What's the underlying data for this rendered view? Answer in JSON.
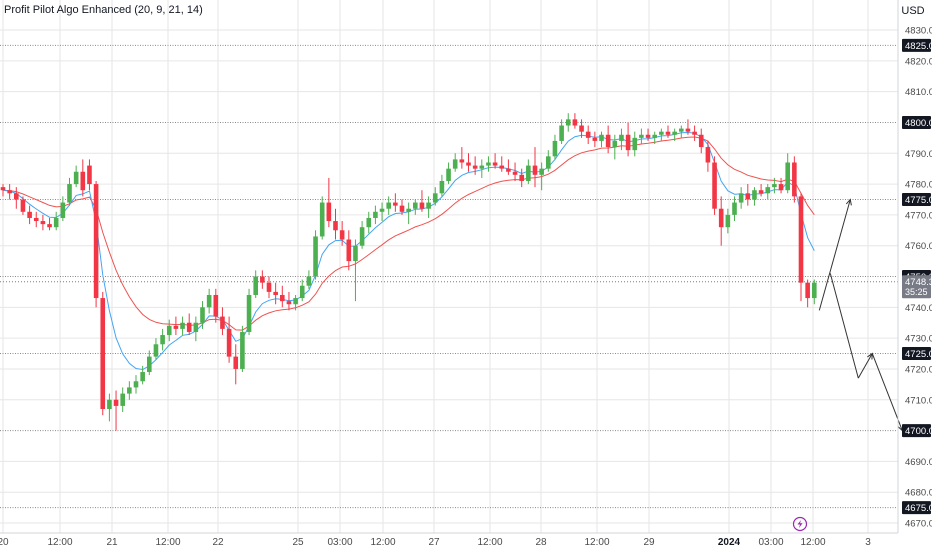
{
  "indicator": {
    "name": "Profit Pilot Algo Enhanced",
    "params": "(20, 9, 21, 14)"
  },
  "currency": "USD",
  "colors": {
    "up": "#4caf50",
    "down": "#f23645",
    "ma_fast": "#42a5f5",
    "ma_slow": "#ef5350",
    "grid": "#e6e6e6",
    "level_line": "#8a8a8a",
    "axis_text": "#4a4a4a",
    "level_box": "#131722",
    "price_box": "#787b86",
    "projection": "#333333"
  },
  "price_axis": {
    "ticks": [
      "4830.0",
      "4820.0",
      "4810.0",
      "4790.0",
      "4780.0",
      "4770.0",
      "4760.0",
      "4740.0",
      "4730.0",
      "4720.0",
      "4710.0",
      "4690.0",
      "4680.0",
      "4670.0"
    ],
    "levels": [
      "4825.0",
      "4800.0",
      "4775.0",
      "4750.0",
      "4725.0",
      "4700.0",
      "4675.0"
    ],
    "current_price": "4748.3",
    "countdown": "35:25"
  },
  "time_axis": [
    "20",
    "12:00",
    "21",
    "12:00",
    "22",
    "25",
    "03:00",
    "12:00",
    "27",
    "12:00",
    "28",
    "12:00",
    "29",
    "2024",
    "03:00",
    "12:00",
    "3"
  ],
  "chart_data": {
    "type": "candlestick",
    "ylim": [
      4667,
      4833
    ],
    "horizontal_levels": [
      4825,
      4800,
      4775,
      4750,
      4725,
      4700,
      4675
    ],
    "current_price": 4748.3,
    "series": [
      {
        "name": "",
        "type": "ma_fast",
        "values": []
      },
      {
        "name": "",
        "type": "ma_slow",
        "values": []
      }
    ],
    "candles": [
      [
        4779,
        4780,
        4776,
        4778
      ],
      [
        4778,
        4780,
        4775,
        4777
      ],
      [
        4777,
        4779,
        4772,
        4775
      ],
      [
        4775,
        4776,
        4770,
        4771
      ],
      [
        4771,
        4773,
        4767,
        4769
      ],
      [
        4769,
        4771,
        4766,
        4768
      ],
      [
        4768,
        4770,
        4765,
        4767
      ],
      [
        4767,
        4769,
        4765,
        4766
      ],
      [
        4766,
        4771,
        4765,
        4769
      ],
      [
        4769,
        4776,
        4768,
        4774
      ],
      [
        4774,
        4782,
        4773,
        4780
      ],
      [
        4780,
        4786,
        4779,
        4784
      ],
      [
        4784,
        4788,
        4776,
        4778
      ],
      [
        4786,
        4788,
        4778,
        4780
      ],
      [
        4780,
        4781,
        4740,
        4743
      ],
      [
        4743,
        4745,
        4705,
        4707
      ],
      [
        4707,
        4712,
        4703,
        4710
      ],
      [
        4710,
        4713,
        4700,
        4708
      ],
      [
        4708,
        4714,
        4706,
        4712
      ],
      [
        4712,
        4716,
        4710,
        4714
      ],
      [
        4714,
        4718,
        4712,
        4716
      ],
      [
        4716,
        4721,
        4715,
        4719
      ],
      [
        4719,
        4726,
        4718,
        4724
      ],
      [
        4724,
        4730,
        4723,
        4728
      ],
      [
        4728,
        4733,
        4726,
        4731
      ],
      [
        4731,
        4736,
        4729,
        4734
      ],
      [
        4734,
        4737,
        4731,
        4733
      ],
      [
        4733,
        4737,
        4731,
        4735
      ],
      [
        4735,
        4738,
        4731,
        4732
      ],
      [
        4732,
        4737,
        4729,
        4735
      ],
      [
        4735,
        4742,
        4733,
        4740
      ],
      [
        4740,
        4746,
        4738,
        4744
      ],
      [
        4744,
        4746,
        4735,
        4737
      ],
      [
        4737,
        4740,
        4731,
        4733
      ],
      [
        4733,
        4737,
        4722,
        4724
      ],
      [
        4724,
        4728,
        4715,
        4720
      ],
      [
        4720,
        4734,
        4719,
        4732
      ],
      [
        4732,
        4746,
        4731,
        4744
      ],
      [
        4744,
        4752,
        4743,
        4750
      ],
      [
        4750,
        4752,
        4746,
        4748
      ],
      [
        4748,
        4750,
        4743,
        4745
      ],
      [
        4745,
        4748,
        4741,
        4744
      ],
      [
        4744,
        4747,
        4740,
        4742
      ],
      [
        4742,
        4745,
        4739,
        4741
      ],
      [
        4741,
        4744,
        4739,
        4743
      ],
      [
        4743,
        4749,
        4742,
        4747
      ],
      [
        4747,
        4752,
        4746,
        4750
      ],
      [
        4750,
        4765,
        4749,
        4763
      ],
      [
        4763,
        4776,
        4762,
        4774
      ],
      [
        4774,
        4782,
        4766,
        4768
      ],
      [
        4768,
        4772,
        4762,
        4765
      ],
      [
        4765,
        4768,
        4760,
        4762
      ],
      [
        4762,
        4765,
        4752,
        4755
      ],
      [
        4755,
        4762,
        4742,
        4760
      ],
      [
        4760,
        4768,
        4759,
        4766
      ],
      [
        4766,
        4771,
        4764,
        4769
      ],
      [
        4769,
        4773,
        4767,
        4771
      ],
      [
        4771,
        4774,
        4768,
        4772
      ],
      [
        4772,
        4776,
        4770,
        4774
      ],
      [
        4774,
        4777,
        4771,
        4773
      ],
      [
        4773,
        4775,
        4770,
        4771
      ],
      [
        4771,
        4774,
        4767,
        4772
      ],
      [
        4772,
        4775,
        4770,
        4774
      ],
      [
        4774,
        4778,
        4771,
        4772
      ],
      [
        4772,
        4776,
        4769,
        4774
      ],
      [
        4774,
        4779,
        4773,
        4777
      ],
      [
        4777,
        4783,
        4776,
        4781
      ],
      [
        4781,
        4787,
        4780,
        4785
      ],
      [
        4785,
        4790,
        4784,
        4788
      ],
      [
        4788,
        4792,
        4785,
        4787
      ],
      [
        4787,
        4790,
        4784,
        4786
      ],
      [
        4786,
        4789,
        4783,
        4785
      ],
      [
        4785,
        4788,
        4782,
        4786
      ],
      [
        4786,
        4789,
        4784,
        4787
      ],
      [
        4787,
        4790,
        4785,
        4786
      ],
      [
        4786,
        4789,
        4784,
        4785
      ],
      [
        4785,
        4788,
        4783,
        4784
      ],
      [
        4784,
        4787,
        4781,
        4783
      ],
      [
        4783,
        4785,
        4779,
        4781
      ],
      [
        4781,
        4788,
        4780,
        4786
      ],
      [
        4786,
        4792,
        4779,
        4783
      ],
      [
        4783,
        4787,
        4778,
        4785
      ],
      [
        4785,
        4791,
        4784,
        4789
      ],
      [
        4789,
        4796,
        4788,
        4794
      ],
      [
        4794,
        4801,
        4793,
        4799
      ],
      [
        4799,
        4803,
        4797,
        4801
      ],
      [
        4801,
        4803,
        4798,
        4799
      ],
      [
        4799,
        4801,
        4795,
        4797
      ],
      [
        4797,
        4799,
        4793,
        4795
      ],
      [
        4795,
        4797,
        4792,
        4794
      ],
      [
        4794,
        4797,
        4792,
        4796
      ],
      [
        4796,
        4799,
        4790,
        4792
      ],
      [
        4792,
        4796,
        4788,
        4794
      ],
      [
        4794,
        4798,
        4791,
        4796
      ],
      [
        4796,
        4800,
        4789,
        4791
      ],
      [
        4791,
        4797,
        4789,
        4795
      ],
      [
        4795,
        4798,
        4793,
        4796
      ],
      [
        4796,
        4798,
        4794,
        4795
      ],
      [
        4795,
        4797,
        4793,
        4796
      ],
      [
        4796,
        4798,
        4794,
        4797
      ],
      [
        4797,
        4799,
        4795,
        4796
      ],
      [
        4796,
        4798,
        4794,
        4797
      ],
      [
        4797,
        4799,
        4795,
        4798
      ],
      [
        4798,
        4801,
        4796,
        4797
      ],
      [
        4797,
        4799,
        4794,
        4796
      ],
      [
        4796,
        4798,
        4790,
        4792
      ],
      [
        4792,
        4794,
        4784,
        4787
      ],
      [
        4787,
        4789,
        4770,
        4772
      ],
      [
        4772,
        4776,
        4760,
        4766
      ],
      [
        4766,
        4772,
        4764,
        4770
      ],
      [
        4770,
        4776,
        4768,
        4774
      ],
      [
        4774,
        4779,
        4772,
        4777
      ],
      [
        4777,
        4780,
        4773,
        4775
      ],
      [
        4775,
        4779,
        4773,
        4778
      ],
      [
        4778,
        4780,
        4776,
        4777
      ],
      [
        4777,
        4780,
        4775,
        4779
      ],
      [
        4779,
        4782,
        4777,
        4780
      ],
      [
        4780,
        4782,
        4777,
        4778
      ],
      [
        4778,
        4790,
        4777,
        4787
      ],
      [
        4787,
        4789,
        4774,
        4776
      ],
      [
        4776,
        4777,
        4742,
        4748
      ],
      [
        4748,
        4749,
        4740,
        4743
      ],
      [
        4743,
        4749,
        4741,
        4748
      ]
    ],
    "projection": [
      [
        4739,
        4775
      ],
      [
        4751,
        4717
      ],
      [
        4725,
        4700
      ]
    ]
  }
}
